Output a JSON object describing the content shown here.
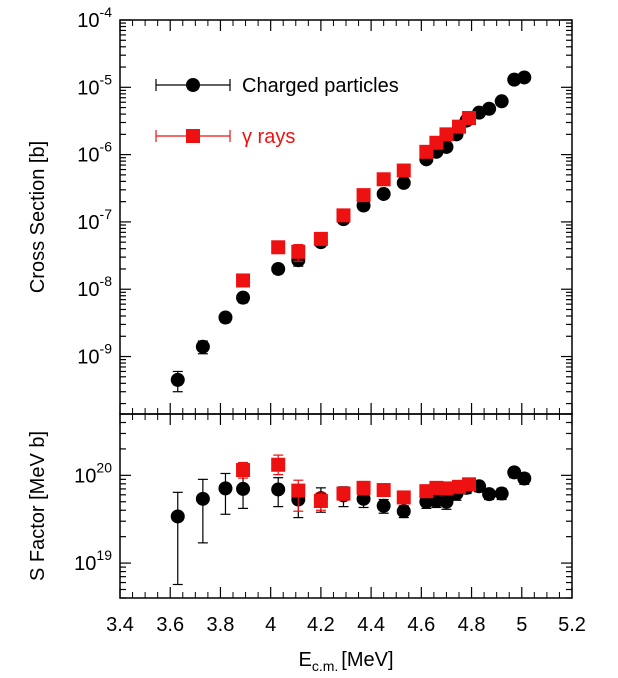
{
  "chart_data": [
    {
      "type": "scatter",
      "panel": "cross-section",
      "ylabel": "Cross Section [b]",
      "yscale": "log",
      "ylim": [
        1.4e-10,
        0.0001
      ],
      "xlim": [
        3.4,
        5.2
      ],
      "y_ticks": [
        {
          "value": 1e-09,
          "base": "10",
          "exp": "-9"
        },
        {
          "value": 1e-08,
          "base": "10",
          "exp": "-8"
        },
        {
          "value": 1e-07,
          "base": "10",
          "exp": "-7"
        },
        {
          "value": 1e-06,
          "base": "10",
          "exp": "-6"
        },
        {
          "value": 1e-05,
          "base": "10",
          "exp": "-5"
        },
        {
          "value": 0.0001,
          "base": "10",
          "exp": "-4"
        }
      ],
      "legend": {
        "placement": "top-left"
      },
      "series": [
        {
          "name": "Charged particles",
          "color": "#000000",
          "marker": "circle",
          "x": [
            3.63,
            3.73,
            3.82,
            3.89,
            4.03,
            4.11,
            4.2,
            4.29,
            4.37,
            4.45,
            4.53,
            4.62,
            4.66,
            4.7,
            4.74,
            4.78,
            4.83,
            4.87,
            4.92,
            4.97,
            5.01
          ],
          "y": [
            4.5e-10,
            1.4e-09,
            3.8e-09,
            7.5e-09,
            2e-08,
            2.7e-08,
            5e-08,
            1.1e-07,
            1.75e-07,
            2.6e-07,
            3.8e-07,
            8.5e-07,
            1.1e-06,
            1.3e-06,
            2e-06,
            3.2e-06,
            4.2e-06,
            4.8e-06,
            6.2e-06,
            1.3e-05,
            1.4e-05
          ],
          "yerr": [
            1.5e-10,
            3e-10,
            6e-10,
            1.2e-09,
            3e-09,
            5e-09,
            7e-09,
            1.5e-08,
            2.5e-08,
            3.5e-08,
            5.5e-08,
            1.1e-07,
            1.4e-07,
            1.7e-07,
            2.5e-07,
            4e-07,
            5e-07,
            6e-07,
            8e-07,
            1.5e-06,
            1.7e-06
          ]
        },
        {
          "name": "γ rays",
          "color": "#ee1111",
          "marker": "square",
          "x": [
            3.89,
            4.03,
            4.11,
            4.2,
            4.29,
            4.37,
            4.45,
            4.53,
            4.62,
            4.66,
            4.7,
            4.75,
            4.79
          ],
          "y": [
            1.35e-08,
            4.2e-08,
            3.6e-08,
            5.6e-08,
            1.25e-07,
            2.5e-07,
            4.3e-07,
            5.8e-07,
            1.1e-06,
            1.5e-06,
            2e-06,
            2.6e-06,
            3.5e-06
          ],
          "yerr": [
            2e-09,
            7e-09,
            1e-08,
            1e-08,
            2e-08,
            4e-08,
            6e-08,
            8e-08,
            1.5e-07,
            2e-07,
            3e-07,
            3.5e-07,
            4.5e-07
          ]
        }
      ]
    },
    {
      "type": "scatter",
      "panel": "s-factor",
      "xlabel": "E",
      "xlabel_sub": "c.m.",
      "xlabel_unit": "[MeV]",
      "ylabel": "S Factor [MeV b]",
      "yscale": "log",
      "ylim": [
        4e+18,
        5e+20
      ],
      "xlim": [
        3.4,
        5.2
      ],
      "x_ticks": [
        "3.4",
        "3.6",
        "3.8",
        "4",
        "4.2",
        "4.4",
        "4.6",
        "4.8",
        "5",
        "5.2"
      ],
      "y_ticks": [
        {
          "value": 1e+19,
          "base": "10",
          "exp": "19"
        },
        {
          "value": 1e+20,
          "base": "10",
          "exp": "20"
        }
      ],
      "series": [
        {
          "name": "Charged particles",
          "color": "#000000",
          "marker": "circle",
          "x": [
            3.63,
            3.73,
            3.82,
            3.89,
            4.03,
            4.11,
            4.2,
            4.29,
            4.37,
            4.45,
            4.53,
            4.62,
            4.66,
            4.7,
            4.74,
            4.78,
            4.83,
            4.87,
            4.92,
            4.97,
            5.01
          ],
          "y": [
            3.4e+19,
            5.4e+19,
            7.1e+19,
            7e+19,
            6.9e+19,
            5.3e+19,
            5.5e+19,
            5.9e+19,
            5.4e+19,
            4.5e+19,
            3.9e+19,
            5e+19,
            5.1e+19,
            5e+19,
            6.2e+19,
            7.2e+19,
            7.5e+19,
            6.1e+19,
            6.2e+19,
            1.08e+20,
            9.2e+19
          ],
          "ylo": [
            5.7e+18,
            1.7e+19,
            3.6e+19,
            4.2e+19,
            4.4e+19,
            3.3e+19,
            3.8e+19,
            4.4e+19,
            4.3e+19,
            3.7e+19,
            3.3e+19,
            4.2e+19,
            4.3e+19,
            4.1e+19,
            5.2e+19,
            6.2e+19,
            6.5e+19,
            5.3e+19,
            5.3e+19,
            9.4e+19,
            7.9e+19
          ],
          "yhi": [
            6.4e+19,
            9e+19,
            1.05e+20,
            9.8e+19,
            9.4e+19,
            7.1e+19,
            7.2e+19,
            7.4e+19,
            6.5e+19,
            5.3e+19,
            4.5e+19,
            5.8e+19,
            5.9e+19,
            5.9e+19,
            7.2e+19,
            8.2e+19,
            8.5e+19,
            6.9e+19,
            7.1e+19,
            1.22e+20,
            1.05e+20
          ]
        },
        {
          "name": "γ rays",
          "color": "#ee1111",
          "marker": "square",
          "x": [
            3.89,
            4.03,
            4.11,
            4.2,
            4.29,
            4.37,
            4.45,
            4.53,
            4.62,
            4.66,
            4.7,
            4.75,
            4.79
          ],
          "y": [
            1.15e+20,
            1.32e+20,
            6.7e+19,
            5.1e+19,
            6.2e+19,
            7.2e+19,
            6.8e+19,
            5.6e+19,
            6.6e+19,
            7.2e+19,
            7.1e+19,
            7.4e+19,
            7.9e+19
          ],
          "ylo": [
            9.3e+19,
            1.02e+20,
            3.9e+19,
            4e+19,
            5.2e+19,
            6e+19,
            5.8e+19,
            4.8e+19,
            5.6e+19,
            6.1e+19,
            6e+19,
            6.3e+19,
            6.8e+19
          ],
          "yhi": [
            1.4e+20,
            1.7e+20,
            8.8e+19,
            6.3e+19,
            7.3e+19,
            8.5e+19,
            7.8e+19,
            6.5e+19,
            7.6e+19,
            8.3e+19,
            8.2e+19,
            8.5e+19,
            9e+19
          ]
        }
      ]
    }
  ]
}
